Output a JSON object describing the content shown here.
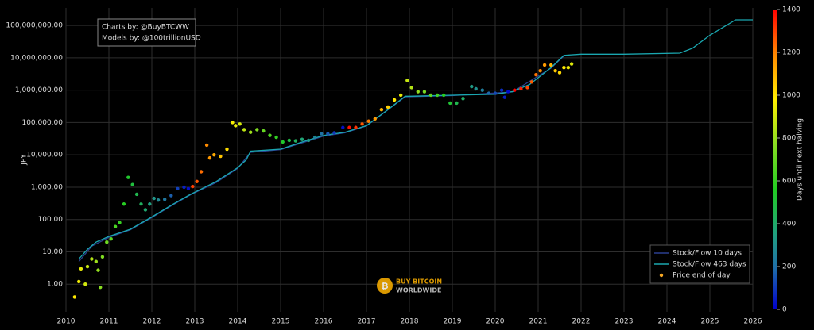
{
  "chart_data": {
    "type": "scatter",
    "annotation": [
      "Charts by: @BuyBTCWW",
      "Models by: @100trillionUSD"
    ],
    "watermark": [
      "BUY BITCOIN",
      "WORLDWIDE"
    ],
    "ylabel": "JPY",
    "yscale": "log",
    "grid": true,
    "legend": "bottom right",
    "xlim": [
      2010,
      2026
    ],
    "xticks": [
      2010,
      2011,
      2012,
      2013,
      2014,
      2015,
      2016,
      2017,
      2018,
      2019,
      2020,
      2021,
      2022,
      2023,
      2024,
      2025,
      2026
    ],
    "ylim": [
      0.14,
      350000000
    ],
    "yticks": [
      {
        "value": 1,
        "label": "1.00"
      },
      {
        "value": 10,
        "label": "10.00"
      },
      {
        "value": 100,
        "label": "100.00"
      },
      {
        "value": 1000,
        "label": "1,000.00"
      },
      {
        "value": 10000,
        "label": "10,000.00"
      },
      {
        "value": 100000,
        "label": "100,000.00"
      },
      {
        "value": 1000000,
        "label": "1,000,000.00"
      },
      {
        "value": 10000000,
        "label": "10,000,000.00"
      },
      {
        "value": 100000000,
        "label": "100,000,000.00"
      }
    ],
    "colorbar": {
      "label": "Days until next halving",
      "lim": [
        0,
        1400
      ],
      "ticks": [
        0,
        200,
        400,
        600,
        800,
        1000,
        1200,
        1400
      ],
      "colorscale": [
        [
          0,
          "#0000cc"
        ],
        [
          0.14,
          "#1f6fa8"
        ],
        [
          0.25,
          "#20a080"
        ],
        [
          0.4,
          "#22cc22"
        ],
        [
          0.55,
          "#88dd22"
        ],
        [
          0.7,
          "#ffee00"
        ],
        [
          0.85,
          "#ff8800"
        ],
        [
          1,
          "#ff0000"
        ]
      ]
    },
    "series": [
      {
        "name": "Stock/Flow 10 days",
        "type": "line",
        "color": "#2a3f8f",
        "x": [
          2010.3,
          2010.6,
          2011,
          2011.5,
          2012,
          2012.5,
          2012.9,
          2013.5,
          2014,
          2014.3,
          2015,
          2016,
          2016.5,
          2017,
          2017.9,
          2019,
          2020.4,
          2021.3,
          2021.6
        ],
        "values": [
          5,
          15,
          28,
          48,
          115,
          290,
          580,
          1400,
          3800,
          12000,
          14500,
          38000,
          48000,
          78000,
          620000,
          680000,
          880000,
          4800000,
          11500000
        ]
      },
      {
        "name": "Stock/Flow 463 days",
        "type": "line",
        "color": "#1aa7b0",
        "x": [
          2010.3,
          2010.5,
          2010.7,
          2011,
          2011.5,
          2012,
          2012.5,
          2012.9,
          2013,
          2013.5,
          2014,
          2014.2,
          2014.3,
          2015,
          2015.5,
          2016,
          2016.5,
          2017,
          2017.5,
          2017.9,
          2018,
          2019,
          2020,
          2020.4,
          2020.8,
          2021.3,
          2021.6,
          2022,
          2023,
          2024.3,
          2024.6,
          2025,
          2025.6,
          2026
        ],
        "values": [
          6,
          12,
          20,
          30,
          50,
          120,
          300,
          600,
          700,
          1500,
          4000,
          7000,
          13000,
          15000,
          25000,
          40000,
          50000,
          80000,
          250000,
          650000,
          650000,
          700000,
          750000,
          900000,
          1500000,
          5000000,
          12000000,
          13000000,
          13000000,
          14000000,
          20000000,
          50000000,
          150000000,
          150000000
        ]
      },
      {
        "name": "Price end of day",
        "type": "scatter",
        "color": "#f5a623",
        "x": [
          2010.2,
          2010.3,
          2010.35,
          2010.45,
          2010.5,
          2010.6,
          2010.7,
          2010.75,
          2010.8,
          2010.85,
          2010.95,
          2011.05,
          2011.15,
          2011.25,
          2011.35,
          2011.45,
          2011.55,
          2011.65,
          2011.75,
          2011.85,
          2011.95,
          2012.05,
          2012.15,
          2012.3,
          2012.45,
          2012.6,
          2012.75,
          2012.85,
          2012.95,
          2013.05,
          2013.15,
          2013.28,
          2013.35,
          2013.45,
          2013.6,
          2013.75,
          2013.88,
          2013.95,
          2014.05,
          2014.15,
          2014.3,
          2014.45,
          2014.6,
          2014.75,
          2014.9,
          2015.05,
          2015.2,
          2015.35,
          2015.5,
          2015.65,
          2015.8,
          2015.95,
          2016.1,
          2016.25,
          2016.45,
          2016.6,
          2016.75,
          2016.9,
          2017.05,
          2017.2,
          2017.35,
          2017.5,
          2017.65,
          2017.8,
          2017.95,
          2018.05,
          2018.2,
          2018.35,
          2018.5,
          2018.65,
          2018.8,
          2018.95,
          2019.1,
          2019.25,
          2019.45,
          2019.55,
          2019.7,
          2019.85,
          2020.0,
          2020.15,
          2020.22,
          2020.3,
          2020.45,
          2020.6,
          2020.75,
          2020.85,
          2020.95,
          2021.05,
          2021.15,
          2021.3,
          2021.4,
          2021.5,
          2021.6,
          2021.7,
          2021.78
        ],
        "values": [
          0.4,
          1.2,
          3,
          1.0,
          3.5,
          6,
          5,
          2.7,
          0.8,
          7,
          20,
          25,
          60,
          80,
          300,
          2000,
          1200,
          600,
          300,
          200,
          300,
          450,
          400,
          420,
          550,
          900,
          1000,
          900,
          1050,
          1500,
          3000,
          20000,
          8000,
          10000,
          9000,
          15000,
          100000,
          80000,
          90000,
          60000,
          50000,
          60000,
          55000,
          40000,
          35000,
          25000,
          28000,
          27000,
          30000,
          28000,
          35000,
          45000,
          45000,
          48000,
          70000,
          70000,
          70000,
          90000,
          110000,
          130000,
          250000,
          300000,
          500000,
          700000,
          2000000,
          1200000,
          900000,
          900000,
          700000,
          700000,
          700000,
          400000,
          400000,
          550000,
          1300000,
          1100000,
          1000000,
          800000,
          800000,
          1000000,
          600000,
          900000,
          1000000,
          1100000,
          1200000,
          1800000,
          3000000,
          4000000,
          6000000,
          6000000,
          4000000,
          3500000,
          5000000,
          5000000,
          6500000
        ],
        "days": [
          990,
          953,
          935,
          899,
          880,
          844,
          807,
          789,
          771,
          752,
          716,
          679,
          643,
          606,
          570,
          533,
          497,
          460,
          424,
          387,
          351,
          314,
          278,
          223,
          168,
          113,
          58,
          22,
          1304,
          1267,
          1231,
          1183,
          1158,
          1121,
          1067,
          1012,
          964,
          939,
          902,
          866,
          811,
          756,
          701,
          646,
          592,
          537,
          482,
          427,
          373,
          318,
          263,
          208,
          153,
          99,
          26,
          1373,
          1319,
          1264,
          1209,
          1154,
          1099,
          1045,
          990,
          935,
          880,
          844,
          789,
          734,
          679,
          625,
          570,
          515,
          460,
          405,
          332,
          296,
          241,
          186,
          131,
          77,
          51,
          22,
          1406,
          1351,
          1297,
          1260,
          1224,
          1187,
          1151,
          1096,
          1059,
          1023,
          986,
          950,
          920
        ]
      }
    ]
  }
}
